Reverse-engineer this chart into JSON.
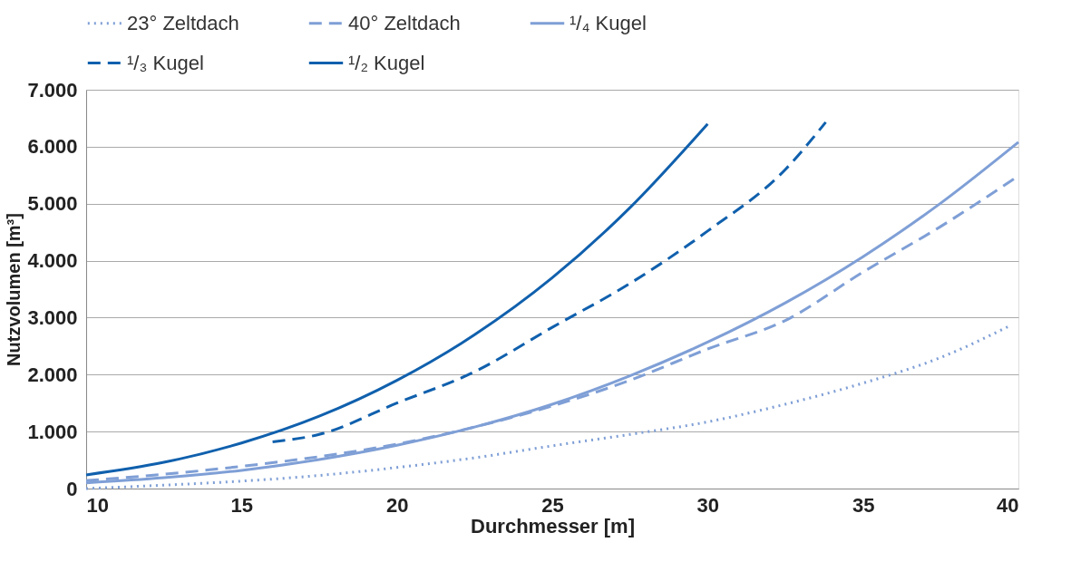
{
  "chart_data": {
    "type": "line",
    "xlabel": "Durchmesser [m]",
    "ylabel": "Nutzvolumen [m³]",
    "xlim": [
      10,
      40
    ],
    "xticks": [
      10,
      15,
      20,
      25,
      30,
      35,
      40
    ],
    "ylim": [
      0,
      7000
    ],
    "yticks": [
      0,
      {
        "value": 1000,
        "label": "1.000"
      },
      {
        "value": 2000,
        "label": "2.000"
      },
      {
        "value": 3000,
        "label": "3.000"
      },
      {
        "value": 4000,
        "label": "4.000"
      },
      {
        "value": 5000,
        "label": "5.000"
      },
      {
        "value": 6000,
        "label": "6.000"
      },
      {
        "value": 7000,
        "label": "7.000"
      }
    ],
    "grid": "y",
    "legend": "top",
    "marker": "none",
    "series": [
      {
        "name": "23° Zeltdach",
        "color": "#7f9fd6",
        "line_style": "dotted",
        "x": [
          10,
          12.5,
          15,
          17.5,
          20,
          22.5,
          25,
          27.5,
          30,
          32.5,
          35,
          37.5,
          39.7
        ],
        "values": [
          0,
          60,
          130,
          230,
          370,
          540,
          750,
          950,
          1170,
          1480,
          1850,
          2300,
          2850
        ]
      },
      {
        "name": "40° Zeltdach",
        "color": "#7f9fd6",
        "line_style": "dashed",
        "x": [
          10,
          12.5,
          15,
          17.5,
          20,
          22.5,
          25,
          27.5,
          30,
          32.5,
          35,
          37.5,
          39.9
        ],
        "values": [
          140,
          250,
          390,
          560,
          780,
          1080,
          1450,
          1900,
          2450,
          2950,
          3800,
          4600,
          5450
        ]
      },
      {
        "name": "¹/₄ Kugel",
        "color": "#7f9fd6",
        "line_style": "solid",
        "x": [
          10,
          12.5,
          15,
          17.5,
          20,
          22.5,
          25,
          27.5,
          30,
          32.5,
          35,
          37.5,
          40
        ],
        "values": [
          100,
          190,
          320,
          510,
          760,
          1080,
          1480,
          1980,
          2570,
          3260,
          4070,
          5010,
          6080
        ]
      },
      {
        "name": "¹/₃ Kugel",
        "color": "#1060ad",
        "line_style": "dashed",
        "x": [
          16,
          17.5,
          20,
          22.5,
          25,
          27.5,
          30,
          32.5,
          33.8
        ],
        "values": [
          820,
          950,
          1500,
          2050,
          2830,
          3600,
          4520,
          5600,
          6430
        ]
      },
      {
        "name": "¹/₂ Kugel",
        "color": "#1060ad",
        "line_style": "solid",
        "x": [
          10,
          12.5,
          15,
          17.5,
          20,
          22.5,
          25,
          27.5,
          30
        ],
        "values": [
          240,
          460,
          800,
          1270,
          1900,
          2700,
          3700,
          4930,
          6400
        ]
      }
    ]
  }
}
